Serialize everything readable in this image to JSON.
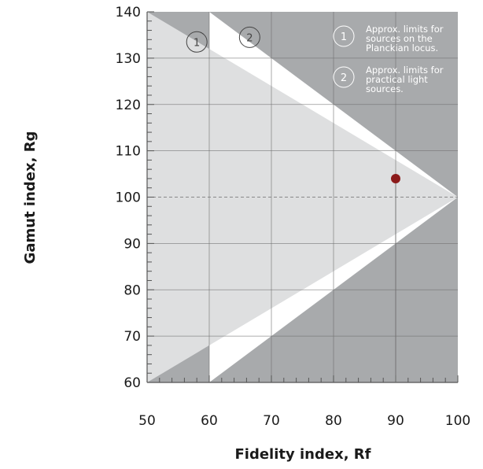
{
  "chart_data": {
    "type": "scatter",
    "xlabel": "Fidelity index, Rf",
    "ylabel": "Gamut index, Rg",
    "xlim": [
      50,
      100
    ],
    "ylim": [
      60,
      140
    ],
    "x_ticks": [
      50,
      60,
      70,
      80,
      90,
      100
    ],
    "y_ticks": [
      60,
      70,
      80,
      90,
      100,
      110,
      120,
      130,
      140
    ],
    "x_minor_step": 2,
    "y_minor_step": 2,
    "grid": true,
    "reference_line_y": 100,
    "regions": [
      {
        "id": "1",
        "polygon": [
          [
            50,
            140
          ],
          [
            100,
            100
          ],
          [
            50,
            60
          ]
        ]
      },
      {
        "id": "2",
        "polygon": [
          [
            60,
            140
          ],
          [
            100,
            100
          ],
          [
            60,
            60
          ]
        ]
      }
    ],
    "region_markers": [
      {
        "id": "1",
        "label": "1",
        "x": 58,
        "y": 133.5
      },
      {
        "id": "2",
        "label": "2",
        "x": 66.5,
        "y": 134.5
      }
    ],
    "points": [
      {
        "x": 90,
        "y": 104
      }
    ],
    "point_color": "#8b1a1a",
    "notes": [
      {
        "marker": "1",
        "lines": [
          "Approx. limits for",
          "sources on the",
          "Planckian locus."
        ]
      },
      {
        "marker": "2",
        "lines": [
          "Approx. limits for",
          "practical light",
          "sources."
        ]
      }
    ],
    "colors": {
      "outer": "#a8aaac",
      "middle": "#dedfe0",
      "inner": "#ffffff"
    }
  }
}
